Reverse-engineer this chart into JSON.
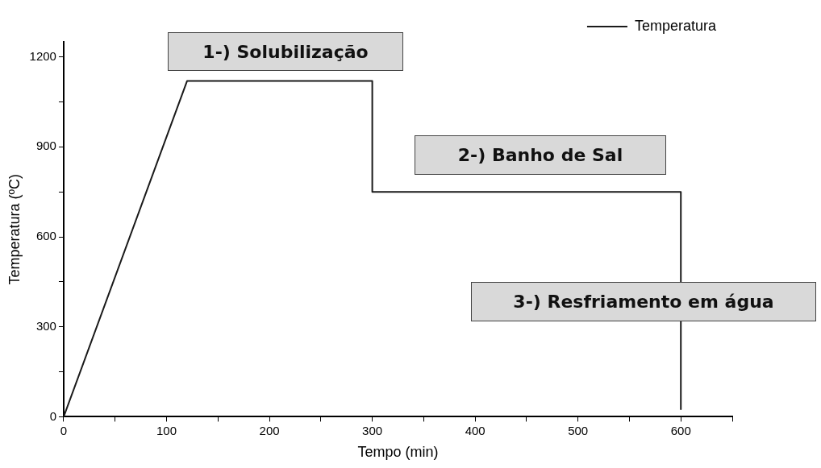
{
  "chart_data": {
    "type": "line",
    "xlabel": "Tempo (min)",
    "ylabel": "Temperatura (ºC)",
    "x": [
      0,
      120,
      300,
      300,
      600,
      600
    ],
    "series": [
      {
        "name": "Temperatura",
        "color": "#1a1a1a",
        "values": [
          0,
          1120,
          1120,
          750,
          750,
          25
        ]
      }
    ],
    "xlim": [
      0,
      650
    ],
    "ylim": [
      0,
      1250
    ],
    "xticks": [
      0,
      {
        "value": 50,
        "label": null
      },
      100,
      {
        "value": 150,
        "label": null
      },
      200,
      {
        "value": 250,
        "label": null
      },
      300,
      {
        "value": 350,
        "label": null
      },
      400,
      {
        "value": 450,
        "label": null
      },
      500,
      {
        "value": 550,
        "label": null
      },
      600,
      {
        "value": 650,
        "label": null
      }
    ],
    "yticks": [
      0,
      {
        "value": 150,
        "label": null
      },
      300,
      {
        "value": 450,
        "label": null
      },
      600,
      {
        "value": 750,
        "label": null
      },
      900,
      {
        "value": 1050,
        "label": null
      },
      1200
    ],
    "annotations": [
      "1-) Solubilização",
      "2-) Banho de Sal",
      "3-) Resfriamento em água"
    ],
    "grid": false,
    "legend": "top right",
    "marker": "none",
    "line_style": "solid"
  }
}
